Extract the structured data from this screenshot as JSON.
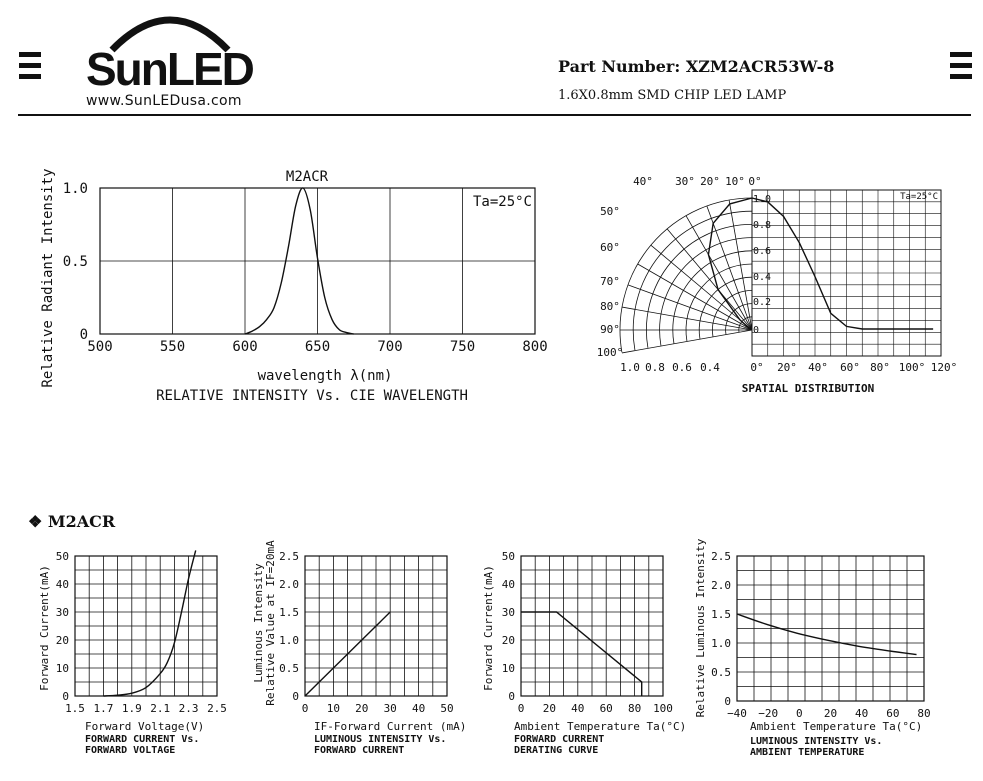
{
  "header": {
    "logo_text": "SunLED",
    "logo_url": "www.SunLEDusa.com",
    "part_number": "Part Number: XZM2ACR53W-8",
    "part_description": "1.6X0.8mm SMD CHIP LED LAMP"
  },
  "section_title": "❖ M2ACR",
  "chart_data": [
    {
      "type": "line",
      "id": "spectrum",
      "title": "M2ACR",
      "annotation": "Ta=25°C",
      "ylabel": "Relative Radiant Intensity",
      "xlabel": "wavelength λ(nm)",
      "caption": "RELATIVE INTENSITY Vs. CIE WAVELENGTH",
      "xlim": [
        500,
        800
      ],
      "ylim": [
        0,
        1.0
      ],
      "xticks": [
        "500",
        "550",
        "600",
        "650",
        "700",
        "750",
        "800"
      ],
      "yticks": [
        "0",
        "0.5",
        "1.0"
      ],
      "series": [
        {
          "x": [
            600,
            605,
            610,
            615,
            620,
            625,
            630,
            635,
            640,
            645,
            650,
            655,
            660,
            665,
            670,
            675
          ],
          "y": [
            0.0,
            0.02,
            0.05,
            0.1,
            0.18,
            0.35,
            0.6,
            0.88,
            1.0,
            0.85,
            0.52,
            0.25,
            0.1,
            0.03,
            0.01,
            0.0
          ]
        }
      ]
    },
    {
      "type": "polar",
      "id": "spatial",
      "annotation": "Ta=25°C",
      "caption": "SPATIAL DISTRIBUTION",
      "angle_labels": [
        "40°",
        "30°",
        "20°",
        "10°",
        "0°",
        "50°",
        "60°",
        "70°",
        "80°",
        "90°",
        "100°"
      ],
      "radial_labels": [
        "1.0",
        "0.8",
        "0.6",
        "0.4",
        "0.2",
        "0"
      ],
      "bottom_left_labels": [
        "1.0",
        "0.8",
        "0.6",
        "0.4"
      ],
      "bottom_right_labels": [
        "0°",
        "20°",
        "40°",
        "60°",
        "80°",
        "100°",
        "120°"
      ],
      "series": [
        {
          "x": [
            0,
            10,
            20,
            30,
            40,
            50,
            60,
            70,
            80,
            90
          ],
          "y": [
            1.0,
            0.97,
            0.86,
            0.66,
            0.4,
            0.12,
            0.02,
            0.0,
            0.0,
            0.0
          ]
        }
      ]
    },
    {
      "type": "line",
      "id": "iv",
      "ylabel": "Forward Current(mA)",
      "xlabel": "Forward Voltage(V)",
      "caption": [
        "FORWARD CURRENT Vs.",
        "FORWARD VOLTAGE"
      ],
      "xlim": [
        1.5,
        2.5
      ],
      "ylim": [
        0,
        50
      ],
      "xticks": [
        "1.5",
        "1.7",
        "1.9",
        "2.1",
        "2.3",
        "2.5"
      ],
      "yticks": [
        "0",
        "10",
        "20",
        "30",
        "40",
        "50"
      ],
      "series": [
        {
          "x": [
            1.7,
            1.8,
            1.9,
            2.0,
            2.1,
            2.15,
            2.2,
            2.25,
            2.3,
            2.35
          ],
          "y": [
            0,
            0.3,
            1,
            3,
            8,
            12,
            19,
            30,
            42,
            52
          ]
        }
      ]
    },
    {
      "type": "line",
      "id": "lum-vs-if",
      "ylabel": [
        "Luminous Intensity",
        "Relative Value at IF=20mA"
      ],
      "xlabel": "IF-Forward Current (mA)",
      "caption": [
        "LUMINOUS INTENSITY Vs.",
        "FORWARD CURRENT"
      ],
      "xlim": [
        0,
        50
      ],
      "ylim": [
        0,
        2.5
      ],
      "xticks": [
        "0",
        "10",
        "20",
        "30",
        "40",
        "50"
      ],
      "yticks": [
        "0",
        "0.5",
        "1.0",
        "1.5",
        "2.0",
        "2.5"
      ],
      "series": [
        {
          "x": [
            0,
            30
          ],
          "y": [
            0,
            1.5
          ]
        }
      ]
    },
    {
      "type": "line",
      "id": "derating",
      "ylabel": "Forward Current(mA)",
      "xlabel": "Ambient Temperature Ta(°C)",
      "caption": [
        "FORWARD CURRENT",
        "DERATING CURVE"
      ],
      "xlim": [
        0,
        100
      ],
      "ylim": [
        0,
        50
      ],
      "xticks": [
        "0",
        "20",
        "40",
        "60",
        "80",
        "100"
      ],
      "yticks": [
        "0",
        "10",
        "20",
        "30",
        "40",
        "50"
      ],
      "series": [
        {
          "x": [
            0,
            25,
            85,
            85
          ],
          "y": [
            30,
            30,
            5,
            0
          ]
        }
      ]
    },
    {
      "type": "line",
      "id": "lum-vs-temp",
      "ylabel": "Relative Luminous Intensity",
      "xlabel": "Ambient Temperature Ta(°C)",
      "caption": [
        "LUMINOUS INTENSITY Vs.",
        "AMBIENT TEMPERATURE"
      ],
      "xlim": [
        -40,
        85
      ],
      "ylim": [
        0,
        2.5
      ],
      "xticks": [
        "−40",
        "−20",
        "0",
        "20",
        "40",
        "60",
        "80"
      ],
      "yticks": [
        "0",
        "0.5",
        "1.0",
        "1.5",
        "2.0",
        "2.5"
      ],
      "series": [
        {
          "x": [
            -40,
            -20,
            0,
            20,
            40,
            60,
            80
          ],
          "y": [
            1.5,
            1.32,
            1.17,
            1.05,
            0.95,
            0.87,
            0.8
          ]
        }
      ]
    }
  ]
}
